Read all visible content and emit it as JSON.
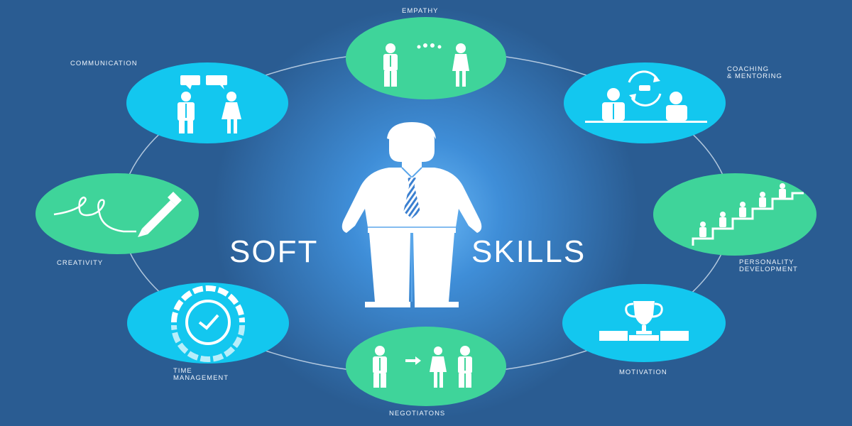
{
  "title": {
    "left": "SOFT",
    "right": "SKILLS"
  },
  "skills": [
    {
      "id": "empathy",
      "label": "EMPATHY",
      "icon": "empathy-icon",
      "color": "#3fd49a"
    },
    {
      "id": "coaching",
      "label_line1": "COACHING",
      "label_line2": "& MENTORING",
      "icon": "coaching-icon",
      "color": "#13c7ef"
    },
    {
      "id": "personality",
      "label_line1": "PERSONALITY",
      "label_line2": "DEVELOPMENT",
      "icon": "stairs-icon",
      "color": "#3fd49a"
    },
    {
      "id": "motivation",
      "label": "MOTIVATION",
      "icon": "trophy-icon",
      "color": "#13c7ef"
    },
    {
      "id": "negotiations",
      "label": "NEGOTIATONS",
      "icon": "negotiation-icon",
      "color": "#3fd49a"
    },
    {
      "id": "time",
      "label_line1": "TIME",
      "label_line2": "MANAGEMENT",
      "icon": "clock-icon",
      "color": "#13c7ef"
    },
    {
      "id": "creativity",
      "label": "CREATIVITY",
      "icon": "pen-icon",
      "color": "#3fd49a"
    },
    {
      "id": "communication",
      "label": "COMMUNICATION",
      "icon": "speech-icon",
      "color": "#13c7ef"
    }
  ],
  "colors": {
    "background": "#2a5c92",
    "glow": "#6ab8f6",
    "green": "#3fd49a",
    "cyan": "#13c7ef",
    "ring": "#c9d9ea"
  }
}
